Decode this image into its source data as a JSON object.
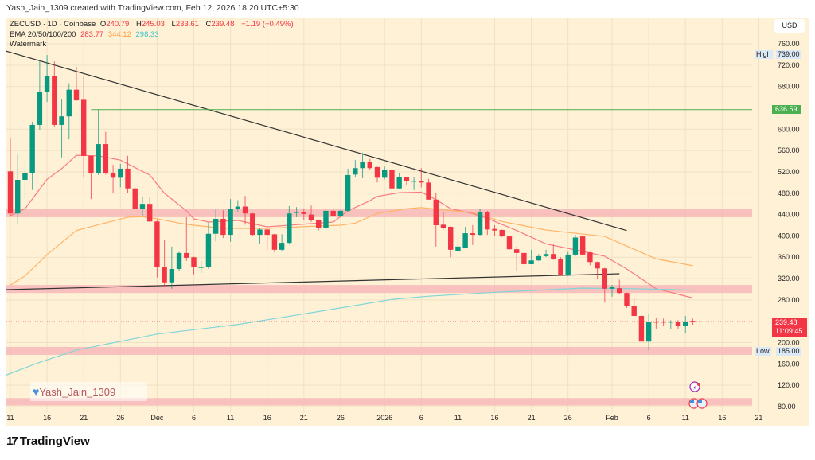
{
  "header": {
    "credit": "Yash_Jain_1309 created with TradingView.com, Feb 12, 2026 18:20 UTC+5:30"
  },
  "legend": {
    "symbol": "ZECUSD · 1D · Coinbase",
    "o_label": "O",
    "o": "240.79",
    "h_label": "H",
    "h": "245.03",
    "l_label": "L",
    "l": "233.61",
    "c_label": "C",
    "c": "239.48",
    "change": "−1.19 (−0.49%)",
    "ema_label": "EMA 20/50/100/200",
    "ema_values": [
      "283.77",
      "344.12",
      "298.33"
    ],
    "watermark_label": "Watermark"
  },
  "price_axis": {
    "currency": "USD",
    "high_label": "High",
    "high_value": "739.00",
    "low_label": "Low",
    "low_value": "185.00",
    "level_value": "636.59",
    "last_price": "239.48",
    "countdown": "11:09:45"
  },
  "watermark": {
    "text": "Yash_Jain_1309",
    "icon": "heart-icon"
  },
  "branding": {
    "name": "TradingView",
    "logo_text": "TV"
  },
  "colors": {
    "up": "#089981",
    "down": "#f23645",
    "ema20": "#f77c80",
    "ema50": "#ffb366",
    "ema200": "#7fd6d8",
    "zone": "#f7b9b9",
    "level": "#4caf50",
    "trendline": "#333333"
  },
  "chart_data": {
    "type": "candlestick",
    "title": "ZECUSD · 1D · Coinbase",
    "ylim": [
      80,
      760
    ],
    "y_ticks": [
      760,
      720,
      680,
      600,
      560,
      520,
      480,
      440,
      400,
      360,
      320,
      280,
      200,
      160,
      120,
      80
    ],
    "x_ticks": [
      {
        "label": "11",
        "date": "2025-11-11"
      },
      {
        "label": "16",
        "date": "2025-11-16"
      },
      {
        "label": "21",
        "date": "2025-11-21"
      },
      {
        "label": "26",
        "date": "2025-11-26"
      },
      {
        "label": "Dec",
        "date": "2025-12-01"
      },
      {
        "label": "6",
        "date": "2025-12-06"
      },
      {
        "label": "11",
        "date": "2025-12-11"
      },
      {
        "label": "16",
        "date": "2025-12-16"
      },
      {
        "label": "21",
        "date": "2025-12-21"
      },
      {
        "label": "26",
        "date": "2025-12-26"
      },
      {
        "label": "2026",
        "date": "2026-01-01"
      },
      {
        "label": "6",
        "date": "2026-01-06"
      },
      {
        "label": "11",
        "date": "2026-01-11"
      },
      {
        "label": "16",
        "date": "2026-01-16"
      },
      {
        "label": "21",
        "date": "2026-01-21"
      },
      {
        "label": "26",
        "date": "2026-01-26"
      },
      {
        "label": "Feb",
        "date": "2026-02-01"
      },
      {
        "label": "6",
        "date": "2026-02-06"
      },
      {
        "label": "11",
        "date": "2026-02-11"
      },
      {
        "label": "16",
        "date": "2026-02-16"
      },
      {
        "label": "21",
        "date": "2026-02-21"
      }
    ],
    "candles_columns": [
      "date",
      "open",
      "high",
      "low",
      "close"
    ],
    "candles": [
      [
        "2025-11-11",
        521,
        584,
        438,
        442
      ],
      [
        "2025-11-12",
        442,
        554,
        423,
        505
      ],
      [
        "2025-11-13",
        505,
        538,
        468,
        518
      ],
      [
        "2025-11-14",
        518,
        614,
        486,
        608
      ],
      [
        "2025-11-15",
        608,
        730,
        599,
        670
      ],
      [
        "2025-11-16",
        670,
        739,
        651,
        699
      ],
      [
        "2025-11-17",
        699,
        727,
        605,
        608
      ],
      [
        "2025-11-18",
        608,
        656,
        547,
        624
      ],
      [
        "2025-11-19",
        624,
        686,
        581,
        674
      ],
      [
        "2025-11-20",
        674,
        717,
        653,
        654
      ],
      [
        "2025-11-21",
        655,
        699,
        509,
        550
      ],
      [
        "2025-11-22",
        550,
        550,
        469,
        517
      ],
      [
        "2025-11-23",
        517,
        636.59,
        514,
        572
      ],
      [
        "2025-11-24",
        572,
        595,
        515,
        518
      ],
      [
        "2025-11-25",
        518,
        533,
        480,
        509
      ],
      [
        "2025-11-26",
        509,
        535,
        491,
        526
      ],
      [
        "2025-11-27",
        526,
        550,
        480,
        489
      ],
      [
        "2025-11-28",
        489,
        490,
        450,
        451
      ],
      [
        "2025-11-29",
        451,
        474,
        436,
        460
      ],
      [
        "2025-11-30",
        460,
        472,
        426,
        427
      ],
      [
        "2025-12-01",
        427,
        430,
        322,
        342
      ],
      [
        "2025-12-02",
        342,
        392,
        305,
        313
      ],
      [
        "2025-12-03",
        313,
        380,
        301,
        338
      ],
      [
        "2025-12-04",
        338,
        370,
        334,
        368
      ],
      [
        "2025-12-05",
        368,
        435,
        353,
        359
      ],
      [
        "2025-12-06",
        360,
        361,
        328,
        341
      ],
      [
        "2025-12-07",
        340,
        353,
        330,
        342
      ],
      [
        "2025-12-08",
        342,
        425,
        338,
        404
      ],
      [
        "2025-12-09",
        404,
        450,
        390,
        432
      ],
      [
        "2025-12-10",
        432,
        448,
        396,
        402
      ],
      [
        "2025-12-11",
        402,
        469,
        389,
        450
      ],
      [
        "2025-12-12",
        450,
        467,
        446,
        455
      ],
      [
        "2025-12-13",
        455,
        475,
        421,
        442
      ],
      [
        "2025-12-14",
        442,
        443,
        400,
        402
      ],
      [
        "2025-12-15",
        402,
        415,
        386,
        412
      ],
      [
        "2025-12-16",
        412,
        413,
        374,
        402
      ],
      [
        "2025-12-17",
        403,
        404,
        369,
        374
      ],
      [
        "2025-12-18",
        374,
        403,
        372,
        387
      ],
      [
        "2025-12-19",
        387,
        456,
        384,
        442
      ],
      [
        "2025-12-20",
        443,
        454,
        435,
        445
      ],
      [
        "2025-12-21",
        445,
        450,
        429,
        441
      ],
      [
        "2025-12-22",
        440,
        457,
        426,
        429
      ],
      [
        "2025-12-23",
        430,
        431,
        410,
        415
      ],
      [
        "2025-12-24",
        415,
        450,
        404,
        447
      ],
      [
        "2025-12-25",
        447,
        454,
        436,
        437
      ],
      [
        "2025-12-26",
        437,
        448,
        435,
        447
      ],
      [
        "2025-12-27",
        447,
        526,
        444,
        514
      ],
      [
        "2025-12-28",
        515,
        542,
        511,
        527
      ],
      [
        "2025-12-29",
        527,
        556,
        508,
        539
      ],
      [
        "2025-12-30",
        539,
        544,
        523,
        527
      ],
      [
        "2025-12-31",
        529,
        530,
        500,
        509
      ],
      [
        "2026-01-01",
        509,
        530,
        506,
        524
      ],
      [
        "2026-01-02",
        524,
        525,
        480,
        489
      ],
      [
        "2026-01-03",
        489,
        518,
        488,
        510
      ],
      [
        "2026-01-04",
        510,
        511,
        496,
        502
      ],
      [
        "2026-01-05",
        502,
        510,
        486,
        503
      ],
      [
        "2026-01-06",
        503,
        527,
        491,
        500
      ],
      [
        "2026-01-07",
        500,
        507,
        468,
        468
      ],
      [
        "2026-01-08",
        468,
        481,
        380,
        420
      ],
      [
        "2026-01-09",
        421,
        445,
        412,
        415
      ],
      [
        "2026-01-10",
        417,
        418,
        360,
        374
      ],
      [
        "2026-01-11",
        372,
        399,
        370,
        380
      ],
      [
        "2026-01-12",
        378,
        417,
        378,
        405
      ],
      [
        "2026-01-13",
        405,
        420,
        383,
        402
      ],
      [
        "2026-01-14",
        402,
        450,
        400,
        445
      ],
      [
        "2026-01-15",
        445,
        447,
        402,
        412
      ],
      [
        "2026-01-16",
        413,
        420,
        399,
        410
      ],
      [
        "2026-01-17",
        411,
        412,
        398,
        399
      ],
      [
        "2026-01-18",
        399,
        400,
        374,
        375
      ],
      [
        "2026-01-19",
        375,
        380,
        335,
        368
      ],
      [
        "2026-01-20",
        368,
        369,
        340,
        347
      ],
      [
        "2026-01-21",
        347,
        374,
        347,
        354
      ],
      [
        "2026-01-22",
        354,
        366,
        353,
        362
      ],
      [
        "2026-01-23",
        362,
        374,
        360,
        366
      ],
      [
        "2026-01-24",
        366,
        384,
        355,
        357
      ],
      [
        "2026-01-25",
        357,
        360,
        325,
        326
      ],
      [
        "2026-01-26",
        326,
        370,
        325,
        365
      ],
      [
        "2026-01-27",
        365,
        402,
        362,
        397
      ],
      [
        "2026-01-28",
        399,
        400,
        363,
        365
      ],
      [
        "2026-01-29",
        369,
        370,
        345,
        351
      ],
      [
        "2026-01-30",
        351,
        352,
        320,
        339
      ],
      [
        "2026-01-31",
        339,
        340,
        275,
        301
      ],
      [
        "2026-02-01",
        301,
        308,
        286,
        304
      ],
      [
        "2026-02-02",
        302,
        318,
        291,
        293
      ],
      [
        "2026-02-03",
        293,
        294,
        265,
        268
      ],
      [
        "2026-02-04",
        269,
        283,
        249,
        250
      ],
      [
        "2026-02-05",
        250,
        251,
        202,
        202
      ],
      [
        "2026-02-06",
        202,
        254,
        185,
        238
      ],
      [
        "2026-02-07",
        239,
        246,
        226,
        238
      ],
      [
        "2026-02-08",
        239,
        245,
        232,
        238
      ],
      [
        "2026-02-09",
        238,
        242,
        226,
        239
      ],
      [
        "2026-02-10",
        239,
        242,
        226,
        232
      ],
      [
        "2026-02-11",
        232,
        250,
        218,
        239
      ],
      [
        "2026-02-12",
        240.79,
        245.03,
        233.61,
        239.48
      ]
    ],
    "ema_series": [
      {
        "name": "EMA 20",
        "color": "#f77c80",
        "points": [
          [
            "2025-11-11",
            438
          ],
          [
            "2025-11-13",
            451
          ],
          [
            "2025-11-16",
            506
          ],
          [
            "2025-11-18",
            526
          ],
          [
            "2025-11-20",
            551
          ],
          [
            "2025-11-23",
            550
          ],
          [
            "2025-11-26",
            542
          ],
          [
            "2025-11-30",
            514
          ],
          [
            "2025-12-02",
            480
          ],
          [
            "2025-12-05",
            447
          ],
          [
            "2025-12-06",
            432
          ],
          [
            "2025-12-08",
            426
          ],
          [
            "2025-12-12",
            429
          ],
          [
            "2025-12-16",
            417
          ],
          [
            "2025-12-20",
            421
          ],
          [
            "2025-12-25",
            426
          ],
          [
            "2025-12-27",
            447
          ],
          [
            "2025-12-30",
            466
          ],
          [
            "2025-12-31",
            474
          ],
          [
            "2026-01-03",
            481
          ],
          [
            "2026-01-06",
            482
          ],
          [
            "2026-01-08",
            468
          ],
          [
            "2026-01-10",
            451
          ],
          [
            "2026-01-13",
            442
          ],
          [
            "2026-01-15",
            433
          ],
          [
            "2026-01-19",
            410
          ],
          [
            "2026-01-23",
            385
          ],
          [
            "2026-01-28",
            371
          ],
          [
            "2026-01-31",
            362
          ],
          [
            "2026-02-03",
            338
          ],
          [
            "2026-02-07",
            301
          ],
          [
            "2026-02-12",
            283.77
          ]
        ]
      },
      {
        "name": "EMA 50",
        "color": "#ffb366",
        "points": [
          [
            "2025-11-11",
            308
          ],
          [
            "2025-11-13",
            325
          ],
          [
            "2025-11-16",
            365
          ],
          [
            "2025-11-20",
            410
          ],
          [
            "2025-11-23",
            421
          ],
          [
            "2025-11-27",
            435
          ],
          [
            "2025-11-29",
            436
          ],
          [
            "2025-12-01",
            432
          ],
          [
            "2025-12-04",
            424
          ],
          [
            "2025-12-06",
            420
          ],
          [
            "2025-12-10",
            414
          ],
          [
            "2025-12-16",
            414
          ],
          [
            "2025-12-22",
            418
          ],
          [
            "2025-12-26",
            420
          ],
          [
            "2025-12-28",
            424
          ],
          [
            "2025-12-31",
            442
          ],
          [
            "2026-01-04",
            451
          ],
          [
            "2026-01-06",
            453
          ],
          [
            "2026-01-08",
            450
          ],
          [
            "2026-01-13",
            444
          ],
          [
            "2026-01-17",
            427
          ],
          [
            "2026-01-23",
            411
          ],
          [
            "2026-01-31",
            399
          ],
          [
            "2026-02-04",
            375
          ],
          [
            "2026-02-07",
            357
          ],
          [
            "2026-02-12",
            344.12
          ]
        ]
      },
      {
        "name": "EMA 200",
        "color": "#7fd6d8",
        "points": [
          [
            "2025-11-10",
            137
          ],
          [
            "2025-11-15",
            163
          ],
          [
            "2025-11-20",
            186
          ],
          [
            "2025-12-01",
            216
          ],
          [
            "2025-12-12",
            234
          ],
          [
            "2025-12-22",
            256
          ],
          [
            "2026-01-02",
            281
          ],
          [
            "2026-01-07",
            287
          ],
          [
            "2026-01-17",
            295
          ],
          [
            "2026-01-28",
            302
          ],
          [
            "2026-02-04",
            301
          ],
          [
            "2026-02-12",
            298.33
          ]
        ]
      }
    ],
    "trendlines": [
      {
        "from": [
          "2025-11-10",
          748
        ],
        "to": [
          "2026-02-03",
          410
        ]
      },
      {
        "from": [
          "2025-11-10",
          299
        ],
        "to": [
          "2026-02-02",
          329
        ]
      }
    ],
    "horizontal_level": {
      "value": 636.59,
      "from": "2025-11-22"
    },
    "zones": [
      [
        435,
        450
      ],
      [
        293,
        308
      ],
      [
        177,
        192
      ],
      [
        82,
        96
      ]
    ],
    "last_price": 239.48,
    "high": 739.0,
    "low": 185.0
  }
}
